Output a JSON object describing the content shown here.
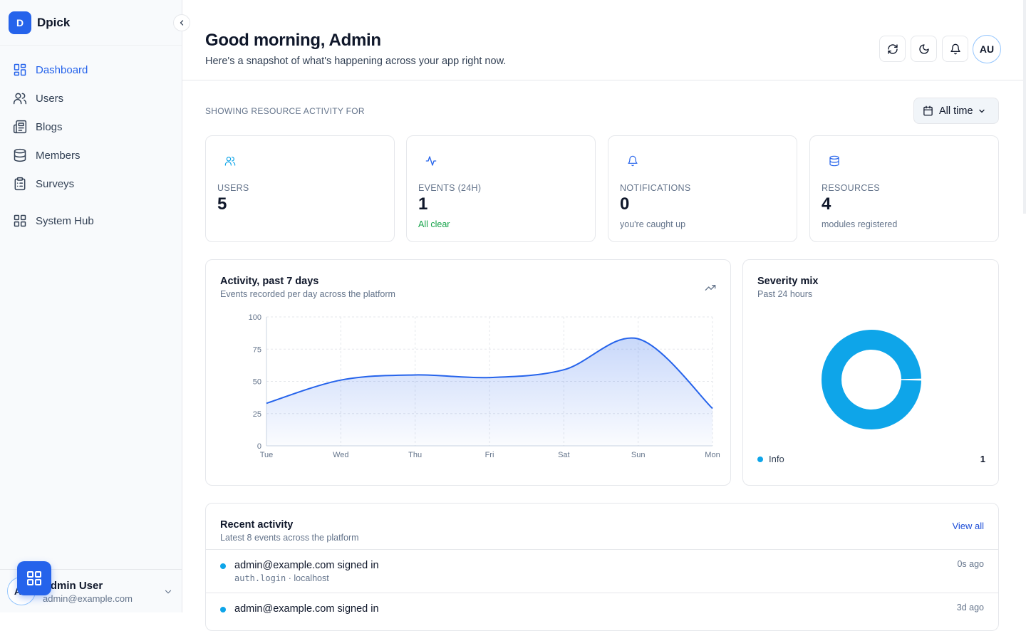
{
  "brand": {
    "logo_letter": "D",
    "name": "Dpick"
  },
  "sidebar": {
    "items": [
      {
        "label": "Dashboard",
        "icon": "dashboard-icon",
        "active": true
      },
      {
        "label": "Users",
        "icon": "users-icon"
      },
      {
        "label": "Blogs",
        "icon": "newspaper-icon"
      },
      {
        "label": "Members",
        "icon": "database-icon"
      },
      {
        "label": "Surveys",
        "icon": "clipboard-icon"
      },
      {
        "label": "System Hub",
        "icon": "grid-icon"
      }
    ],
    "user": {
      "initials": "AU",
      "name": "Admin User",
      "email": "admin@example.com"
    }
  },
  "header": {
    "greeting": "Good morning, Admin",
    "subtitle": "Here's a snapshot of what's happening across your app right now.",
    "avatar_initials": "AU"
  },
  "filter": {
    "label": "SHOWING RESOURCE ACTIVITY FOR",
    "value": "All time"
  },
  "stats": [
    {
      "label": "USERS",
      "value": "5",
      "sub": ""
    },
    {
      "label": "EVENTS (24H)",
      "value": "1",
      "sub": "All clear"
    },
    {
      "label": "NOTIFICATIONS",
      "value": "0",
      "sub": "you're caught up"
    },
    {
      "label": "RESOURCES",
      "value": "4",
      "sub": "modules registered"
    }
  ],
  "activity_chart": {
    "title": "Activity, past 7 days",
    "subtitle": "Events recorded per day across the platform"
  },
  "severity": {
    "title": "Severity mix",
    "subtitle": "Past 24 hours",
    "legend_label": "Info",
    "legend_value": "1"
  },
  "chart_data": [
    {
      "type": "area",
      "title": "Activity, past 7 days",
      "categories": [
        "Tue",
        "Wed",
        "Thu",
        "Fri",
        "Sat",
        "Sun",
        "Mon"
      ],
      "values": [
        33,
        51,
        55,
        53,
        59,
        83,
        29
      ],
      "ylim": [
        0,
        100
      ],
      "yticks": [
        "0",
        "25",
        "50",
        "75",
        "100"
      ],
      "grid": true,
      "color": "#2563eb"
    },
    {
      "type": "pie",
      "title": "Severity mix",
      "categories": [
        "Info"
      ],
      "values": [
        1
      ],
      "colors": [
        "#0ea5e9"
      ]
    }
  ],
  "recent": {
    "title": "Recent activity",
    "subtitle": "Latest 8 events across the platform",
    "view_all": "View all",
    "rows": [
      {
        "text": "admin@example.com signed in",
        "code": "auth.login",
        "source": " · localhost",
        "time": "0s ago"
      },
      {
        "text": "admin@example.com signed in",
        "code": "",
        "source": "",
        "time": "3d ago"
      }
    ]
  },
  "colors": {
    "accent": "#2563eb",
    "info": "#0ea5e9",
    "success": "#16a34a"
  }
}
